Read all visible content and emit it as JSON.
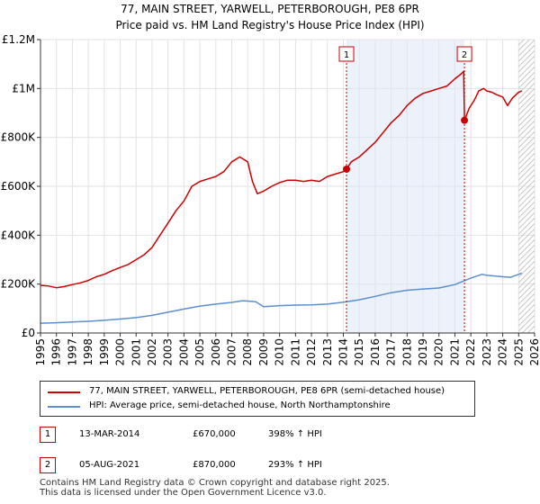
{
  "chart_data": {
    "type": "line",
    "title": "77, MAIN STREET, YARWELL, PETERBOROUGH, PE8 6PR",
    "subtitle": "Price paid vs. HM Land Registry's House Price Index (HPI)",
    "xlim": [
      1995,
      2026
    ],
    "ylim": [
      0,
      1200000
    ],
    "x_ticks": [
      "1995",
      "1996",
      "1997",
      "1998",
      "1999",
      "2000",
      "2001",
      "2002",
      "2003",
      "2004",
      "2005",
      "2006",
      "2007",
      "2008",
      "2009",
      "2010",
      "2011",
      "2012",
      "2013",
      "2014",
      "2015",
      "2016",
      "2017",
      "2018",
      "2019",
      "2020",
      "2021",
      "2022",
      "2023",
      "2024",
      "2025",
      "2026"
    ],
    "y_ticks": [
      {
        "value": 0,
        "label": "£0"
      },
      {
        "value": 200000,
        "label": "£200K"
      },
      {
        "value": 400000,
        "label": "£400K"
      },
      {
        "value": 600000,
        "label": "£600K"
      },
      {
        "value": 800000,
        "label": "£800K"
      },
      {
        "value": 1000000,
        "label": "£1M"
      },
      {
        "value": 1200000,
        "label": "£1.2M"
      }
    ],
    "grid": true,
    "shaded_range": [
      2014.2,
      2021.6
    ],
    "future_start": 2025.0,
    "series": [
      {
        "name": "77, MAIN STREET, YARWELL, PETERBOROUGH, PE8 6PR (semi-detached house)",
        "color": "#cc0000",
        "x": [
          1995.0,
          1995.5,
          1996.0,
          1996.5,
          1997.0,
          1997.5,
          1998.0,
          1998.5,
          1999.0,
          1999.5,
          2000.0,
          2000.5,
          2001.0,
          2001.5,
          2002.0,
          2002.5,
          2003.0,
          2003.5,
          2004.0,
          2004.5,
          2005.0,
          2005.5,
          2006.0,
          2006.5,
          2007.0,
          2007.5,
          2008.0,
          2008.3,
          2008.6,
          2009.0,
          2009.5,
          2010.0,
          2010.5,
          2011.0,
          2011.5,
          2012.0,
          2012.5,
          2013.0,
          2013.5,
          2014.0,
          2014.2,
          2014.5,
          2015.0,
          2015.5,
          2016.0,
          2016.5,
          2017.0,
          2017.5,
          2018.0,
          2018.5,
          2019.0,
          2019.5,
          2020.0,
          2020.5,
          2021.0,
          2021.4,
          2021.55,
          2021.6,
          2021.9,
          2022.2,
          2022.5,
          2022.8,
          2023.0,
          2023.3,
          2023.6,
          2024.0,
          2024.3,
          2024.6,
          2025.0,
          2025.2
        ],
        "values": [
          195000,
          192000,
          185000,
          190000,
          198000,
          205000,
          215000,
          230000,
          240000,
          255000,
          268000,
          280000,
          300000,
          320000,
          350000,
          400000,
          450000,
          500000,
          540000,
          600000,
          620000,
          630000,
          640000,
          660000,
          700000,
          720000,
          700000,
          620000,
          570000,
          580000,
          600000,
          615000,
          625000,
          625000,
          620000,
          625000,
          620000,
          640000,
          650000,
          660000,
          670000,
          700000,
          720000,
          750000,
          780000,
          820000,
          860000,
          890000,
          930000,
          960000,
          980000,
          990000,
          1000000,
          1010000,
          1040000,
          1060000,
          1070000,
          870000,
          920000,
          950000,
          990000,
          1000000,
          990000,
          985000,
          975000,
          965000,
          930000,
          960000,
          985000,
          990000
        ]
      },
      {
        "name": "HPI: Average price, semi-detached house, North Northamptonshire",
        "color": "#5b8fd0",
        "x": [
          1995.0,
          1996.0,
          1997.0,
          1998.0,
          1999.0,
          2000.0,
          2001.0,
          2002.0,
          2003.0,
          2004.0,
          2005.0,
          2006.0,
          2007.0,
          2007.7,
          2008.5,
          2009.0,
          2010.0,
          2011.0,
          2012.0,
          2013.0,
          2014.0,
          2015.0,
          2016.0,
          2017.0,
          2018.0,
          2019.0,
          2020.0,
          2021.0,
          2022.0,
          2022.7,
          2023.0,
          2024.0,
          2024.5,
          2025.0,
          2025.2
        ],
        "values": [
          40000,
          42000,
          45000,
          48000,
          52000,
          57000,
          63000,
          72000,
          85000,
          98000,
          110000,
          118000,
          125000,
          132000,
          128000,
          108000,
          112000,
          114000,
          115000,
          118000,
          126000,
          136000,
          150000,
          165000,
          175000,
          180000,
          184000,
          198000,
          225000,
          240000,
          236000,
          230000,
          228000,
          240000,
          245000
        ]
      }
    ],
    "annotations": [
      {
        "id": "1",
        "x": 2014.2,
        "y": 670000,
        "date": "13-MAR-2014",
        "price": "£670,000",
        "hpi": "398% ↑ HPI"
      },
      {
        "id": "2",
        "x": 2021.6,
        "y": 870000,
        "date": "05-AUG-2021",
        "price": "£870,000",
        "hpi": "293% ↑ HPI"
      }
    ]
  },
  "legend": {
    "property_label": "77, MAIN STREET, YARWELL, PETERBOROUGH, PE8 6PR (semi-detached house)",
    "hpi_label": "HPI: Average price, semi-detached house, North Northamptonshire"
  },
  "footer": {
    "line1": "Contains HM Land Registry data © Crown copyright and database right 2025.",
    "line2": "This data is licensed under the Open Government Licence v3.0."
  }
}
